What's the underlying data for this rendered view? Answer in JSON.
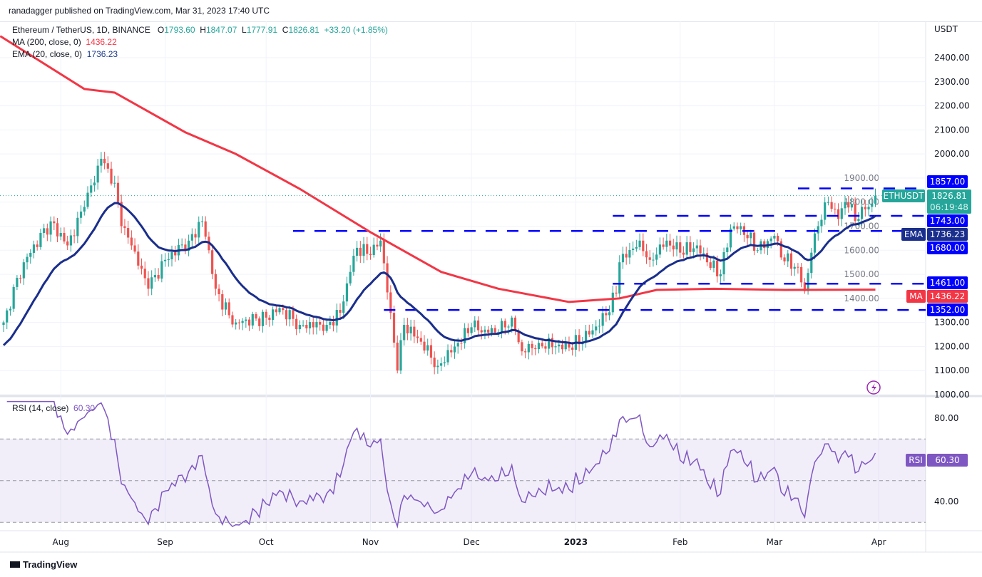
{
  "header": {
    "published": "ranadagger published on TradingView.com, Mar 31, 2023 17:40 UTC"
  },
  "legend": {
    "symbol": "Ethereum / TetherUS, 1D, BINANCE",
    "o_label": "O",
    "open": "1793.60",
    "h_label": "H",
    "high": "1847.07",
    "l_label": "L",
    "low": "1777.91",
    "c_label": "C",
    "close": "1826.81",
    "change": "+33.20 (+1.85%)",
    "ma": "MA (200, close, 0)",
    "ma_value": "1436.22",
    "ema": "EMA (20, close, 0)",
    "ema_value": "1736.23",
    "rsi": "RSI (14, close)",
    "rsi_value": "60.30"
  },
  "footer": {
    "brand": "TradingView"
  },
  "colors": {
    "up": "#26a69a",
    "down": "#ef5350",
    "ema": "#1a2e8c",
    "ma": "#f23645",
    "level": "#0000ff",
    "rsi": "#7e57c2"
  },
  "chart_data": {
    "type": "candlestick",
    "title": "Ethereum / TetherUS, 1D, BINANCE",
    "currency": "USDT",
    "ylim": [
      1000,
      2400
    ],
    "price_ticks": [
      "1000.00",
      "1100.00",
      "1200.00",
      "1300.00",
      "1400.00",
      "1500.00",
      "1600.00",
      "1700.00",
      "1800.00",
      "1900.00",
      "2000.00",
      "2100.00",
      "2200.00",
      "2300.00",
      "2400.00"
    ],
    "x_ticks": [
      {
        "label": "Aug",
        "day": 17
      },
      {
        "label": "Sep",
        "day": 48
      },
      {
        "label": "Oct",
        "day": 78
      },
      {
        "label": "Nov",
        "day": 109
      },
      {
        "label": "Dec",
        "day": 139
      },
      {
        "label": "2023",
        "day": 170
      },
      {
        "label": "Feb",
        "day": 201
      },
      {
        "label": "Mar",
        "day": 229
      },
      {
        "label": "Apr",
        "day": 260
      }
    ],
    "close_anchors_day_price": [
      [
        0,
        1300
      ],
      [
        1,
        1350
      ],
      [
        6,
        1550
      ],
      [
        14,
        1720
      ],
      [
        19,
        1620
      ],
      [
        24,
        1780
      ],
      [
        29,
        1980
      ],
      [
        33,
        1880
      ],
      [
        35,
        1700
      ],
      [
        38,
        1620
      ],
      [
        43,
        1440
      ],
      [
        48,
        1560
      ],
      [
        55,
        1640
      ],
      [
        59,
        1720
      ],
      [
        61,
        1600
      ],
      [
        63,
        1440
      ],
      [
        67,
        1330
      ],
      [
        69,
        1300
      ],
      [
        78,
        1320
      ],
      [
        82,
        1360
      ],
      [
        88,
        1290
      ],
      [
        96,
        1290
      ],
      [
        100,
        1340
      ],
      [
        103,
        1510
      ],
      [
        105,
        1610
      ],
      [
        109,
        1580
      ],
      [
        112,
        1640
      ],
      [
        115,
        1340
      ],
      [
        117,
        1100
      ],
      [
        119,
        1290
      ],
      [
        124,
        1220
      ],
      [
        129,
        1120
      ],
      [
        134,
        1200
      ],
      [
        139,
        1280
      ],
      [
        143,
        1270
      ],
      [
        147,
        1260
      ],
      [
        151,
        1320
      ],
      [
        154,
        1180
      ],
      [
        159,
        1215
      ],
      [
        168,
        1196
      ],
      [
        174,
        1250
      ],
      [
        179,
        1330
      ],
      [
        182,
        1420
      ],
      [
        183,
        1550
      ],
      [
        189,
        1640
      ],
      [
        192,
        1560
      ],
      [
        197,
        1640
      ],
      [
        201,
        1590
      ],
      [
        206,
        1620
      ],
      [
        209,
        1550
      ],
      [
        213,
        1500
      ],
      [
        216,
        1690
      ],
      [
        219,
        1700
      ],
      [
        224,
        1600
      ],
      [
        229,
        1660
      ],
      [
        231,
        1570
      ],
      [
        236,
        1530
      ],
      [
        238,
        1430
      ],
      [
        240,
        1590
      ],
      [
        242,
        1700
      ],
      [
        245,
        1800
      ],
      [
        248,
        1730
      ],
      [
        250,
        1800
      ],
      [
        254,
        1730
      ],
      [
        256,
        1770
      ],
      [
        258,
        1793.6
      ],
      [
        259,
        1826.81
      ]
    ],
    "ma200_day_price": [
      [
        -1,
        2490
      ],
      [
        24,
        2270
      ],
      [
        33,
        2255
      ],
      [
        54,
        2090
      ],
      [
        69,
        2000
      ],
      [
        88,
        1855
      ],
      [
        109,
        1675
      ],
      [
        130,
        1510
      ],
      [
        147,
        1440
      ],
      [
        168,
        1385
      ],
      [
        183,
        1400
      ],
      [
        194,
        1435
      ],
      [
        211,
        1440
      ],
      [
        232,
        1435
      ],
      [
        259,
        1436.22
      ]
    ],
    "ema20_start": 1195,
    "levels": [
      {
        "value": 1857,
        "label": "1857.00",
        "from_day": 236
      },
      {
        "value": 1743,
        "label": "1743.00",
        "from_day": 181
      },
      {
        "value": 1680,
        "label": "1680.00",
        "from_day": 86
      },
      {
        "value": 1461,
        "label": "1461.00",
        "from_day": 181
      },
      {
        "value": 1352,
        "label": "1352.00",
        "from_day": 113
      }
    ],
    "last_price": {
      "symbol": "ETHUSDT",
      "value": "1826.81",
      "countdown": "06:19:48"
    },
    "ema_tag": {
      "label": "EMA",
      "value": "1736.23"
    },
    "ma_tag": {
      "label": "MA",
      "value": "1436.22"
    },
    "rsi": {
      "ylim": [
        25,
        90
      ],
      "ticks": [
        "80.00",
        "40.00"
      ],
      "bands": [
        70,
        50,
        30
      ],
      "tag": {
        "label": "RSI",
        "value": "60.30"
      }
    }
  }
}
